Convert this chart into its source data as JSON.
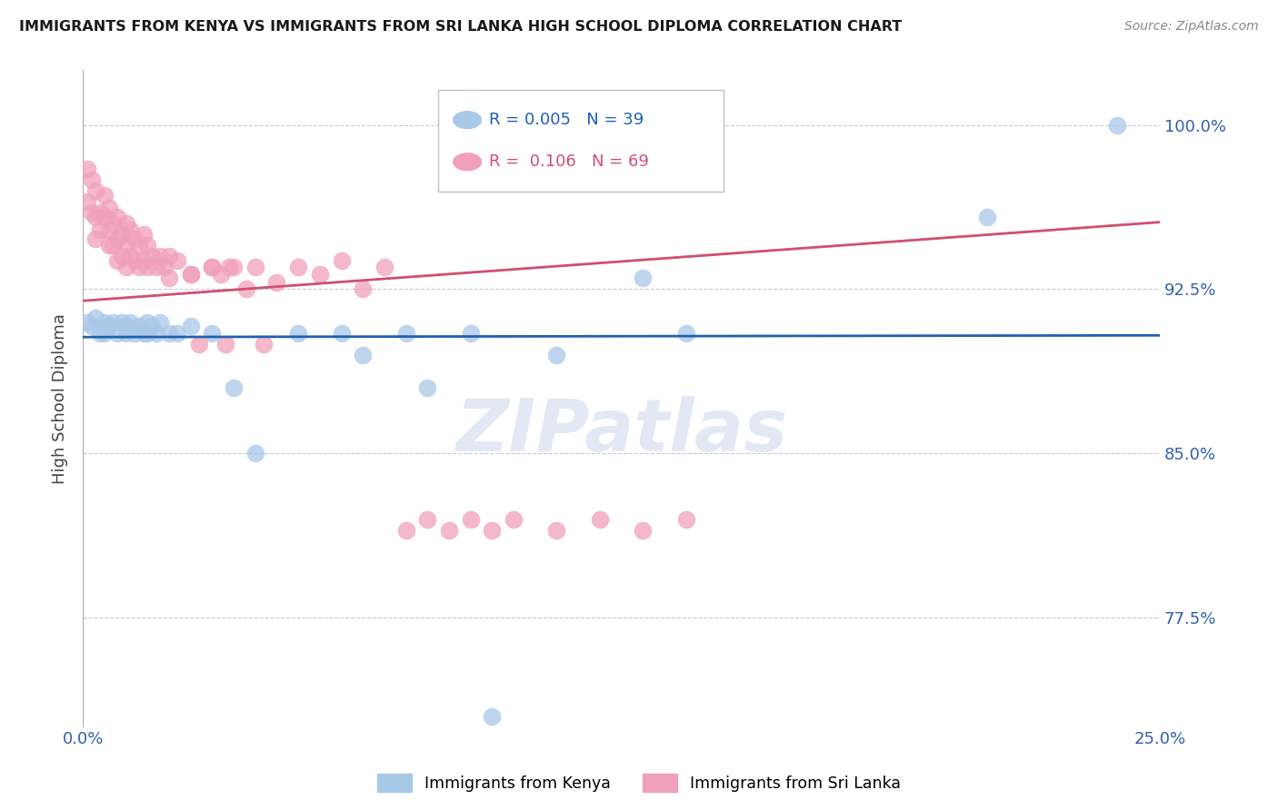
{
  "title": "IMMIGRANTS FROM KENYA VS IMMIGRANTS FROM SRI LANKA HIGH SCHOOL DIPLOMA CORRELATION CHART",
  "source": "Source: ZipAtlas.com",
  "ylabel": "High School Diploma",
  "xlim": [
    0.0,
    0.25
  ],
  "ylim": [
    0.725,
    1.025
  ],
  "yticks": [
    0.775,
    0.85,
    0.925,
    1.0
  ],
  "ytick_labels": [
    "77.5%",
    "85.0%",
    "92.5%",
    "100.0%"
  ],
  "xtick_labels": [
    "0.0%",
    "25.0%"
  ],
  "kenya_color": "#a8c8e8",
  "srilanka_color": "#f0a0b8",
  "kenya_line_color": "#2060b0",
  "srilanka_line_color": "#d05070",
  "dashed_color": "#b0b8d0",
  "watermark": "ZIPatlas",
  "legend_r_kenya": "0.005",
  "legend_n_kenya": "39",
  "legend_r_srilanka": "0.106",
  "legend_n_srilanka": "69",
  "kenya_color_legend": "#a8c8e8",
  "srilanka_color_legend": "#f0a0b8",
  "kenya_points_x": [
    0.001,
    0.002,
    0.003,
    0.004,
    0.005,
    0.005,
    0.006,
    0.007,
    0.008,
    0.009,
    0.01,
    0.01,
    0.011,
    0.012,
    0.013,
    0.014,
    0.015,
    0.015,
    0.016,
    0.017,
    0.018,
    0.02,
    0.022,
    0.025,
    0.03,
    0.035,
    0.04,
    0.05,
    0.06,
    0.065,
    0.075,
    0.08,
    0.09,
    0.095,
    0.11,
    0.13,
    0.14,
    0.21,
    0.24
  ],
  "kenya_points_y": [
    0.91,
    0.908,
    0.912,
    0.905,
    0.91,
    0.905,
    0.908,
    0.91,
    0.905,
    0.91,
    0.908,
    0.905,
    0.91,
    0.905,
    0.908,
    0.905,
    0.91,
    0.905,
    0.908,
    0.905,
    0.91,
    0.905,
    0.905,
    0.908,
    0.905,
    0.88,
    0.85,
    0.905,
    0.905,
    0.895,
    0.905,
    0.88,
    0.905,
    0.73,
    0.895,
    0.93,
    0.905,
    0.958,
    1.0
  ],
  "srilanka_points_x": [
    0.001,
    0.001,
    0.002,
    0.002,
    0.003,
    0.003,
    0.003,
    0.004,
    0.004,
    0.005,
    0.005,
    0.006,
    0.006,
    0.006,
    0.007,
    0.007,
    0.008,
    0.008,
    0.008,
    0.009,
    0.009,
    0.01,
    0.01,
    0.01,
    0.011,
    0.011,
    0.012,
    0.012,
    0.013,
    0.013,
    0.014,
    0.014,
    0.015,
    0.015,
    0.016,
    0.017,
    0.018,
    0.019,
    0.02,
    0.02,
    0.022,
    0.025,
    0.027,
    0.03,
    0.033,
    0.035,
    0.038,
    0.04,
    0.042,
    0.045,
    0.05,
    0.055,
    0.06,
    0.065,
    0.07,
    0.075,
    0.08,
    0.085,
    0.09,
    0.095,
    0.1,
    0.11,
    0.12,
    0.13,
    0.14,
    0.025,
    0.03,
    0.032,
    0.034
  ],
  "srilanka_points_y": [
    0.98,
    0.965,
    0.975,
    0.96,
    0.97,
    0.958,
    0.948,
    0.96,
    0.952,
    0.968,
    0.958,
    0.962,
    0.952,
    0.945,
    0.955,
    0.945,
    0.958,
    0.948,
    0.938,
    0.95,
    0.94,
    0.955,
    0.945,
    0.935,
    0.952,
    0.94,
    0.948,
    0.938,
    0.945,
    0.935,
    0.95,
    0.938,
    0.945,
    0.935,
    0.94,
    0.935,
    0.94,
    0.935,
    0.94,
    0.93,
    0.938,
    0.932,
    0.9,
    0.935,
    0.9,
    0.935,
    0.925,
    0.935,
    0.9,
    0.928,
    0.935,
    0.932,
    0.938,
    0.925,
    0.935,
    0.815,
    0.82,
    0.815,
    0.82,
    0.815,
    0.82,
    0.815,
    0.82,
    0.815,
    0.82,
    0.932,
    0.935,
    0.932,
    0.935
  ]
}
